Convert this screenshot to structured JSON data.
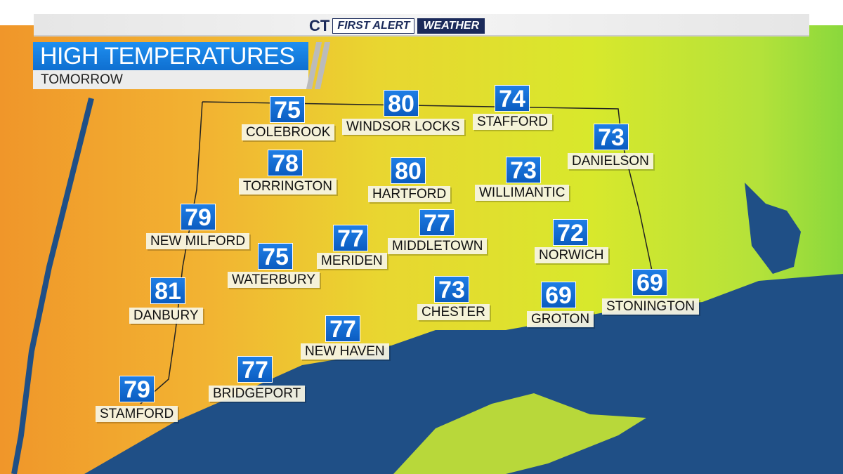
{
  "header": {
    "logo_station": "CT",
    "logo_first_alert": "FIRST ALERT",
    "logo_weather": "WEATHER",
    "title": "HIGH TEMPERATURES",
    "subtitle": "TOMORROW"
  },
  "colors": {
    "title_blue": "#1e8ff0",
    "temp_box": "#0b5cc0",
    "water": "#1f4f86",
    "warm": "#f0a030",
    "mild": "#e6e630",
    "cool": "#7cd63a"
  },
  "cities": [
    {
      "name": "COLEBROOK",
      "temp": "75"
    },
    {
      "name": "WINDSOR LOCKS",
      "temp": "80"
    },
    {
      "name": "STAFFORD",
      "temp": "74"
    },
    {
      "name": "DANIELSON",
      "temp": "73"
    },
    {
      "name": "TORRINGTON",
      "temp": "78"
    },
    {
      "name": "HARTFORD",
      "temp": "80"
    },
    {
      "name": "WILLIMANTIC",
      "temp": "73"
    },
    {
      "name": "NEW MILFORD",
      "temp": "79"
    },
    {
      "name": "MIDDLETOWN",
      "temp": "77"
    },
    {
      "name": "MERIDEN",
      "temp": "77"
    },
    {
      "name": "NORWICH",
      "temp": "72"
    },
    {
      "name": "WATERBURY",
      "temp": "75"
    },
    {
      "name": "DANBURY",
      "temp": "81"
    },
    {
      "name": "CHESTER",
      "temp": "73"
    },
    {
      "name": "GROTON",
      "temp": "69"
    },
    {
      "name": "STONINGTON",
      "temp": "69"
    },
    {
      "name": "NEW HAVEN",
      "temp": "77"
    },
    {
      "name": "BRIDGEPORT",
      "temp": "77"
    },
    {
      "name": "STAMFORD",
      "temp": "79"
    }
  ]
}
